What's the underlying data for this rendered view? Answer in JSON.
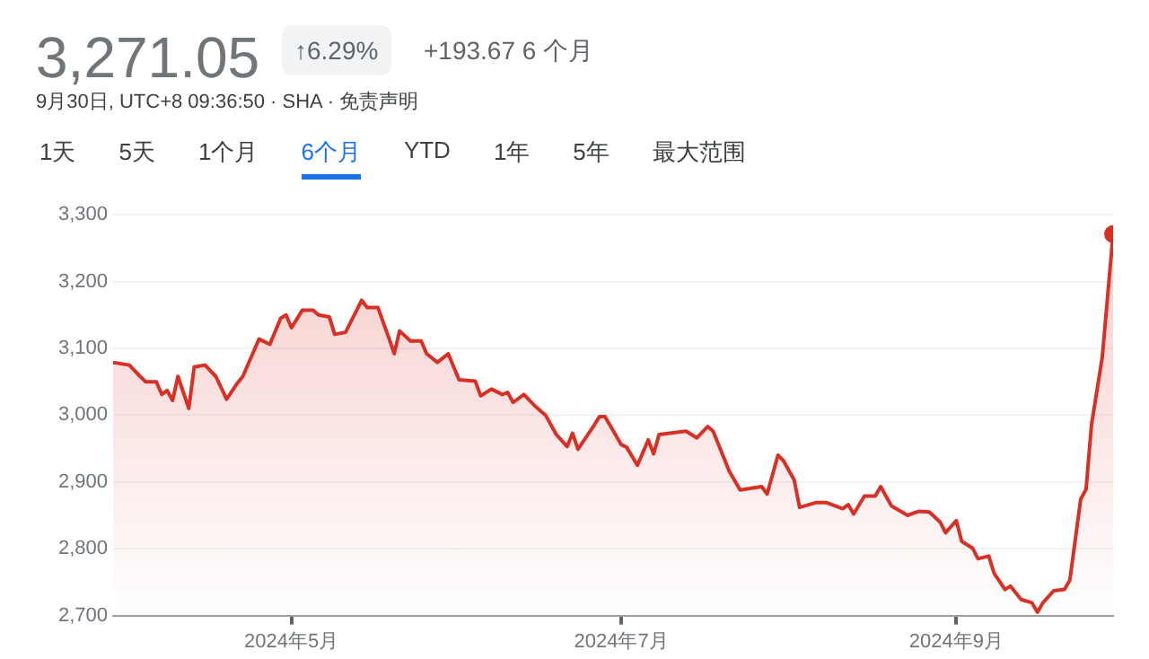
{
  "chart_data": {
    "type": "area",
    "title": "3,271.05",
    "subtitle": "9月30日, UTC+8 09:36:50 · SHA · 免责声明",
    "annotations": [
      "↑6.29%",
      "+193.67 6 个月",
      "1天",
      "5天",
      "1个月",
      "6个月",
      "YTD",
      "1年",
      "5年",
      "最大范围"
    ],
    "x": [
      "2024-03-29",
      "2024-04-01",
      "2024-04-03",
      "2024-04-04",
      "2024-04-06",
      "2024-04-07",
      "2024-04-08",
      "2024-04-09",
      "2024-04-10",
      "2024-04-12",
      "2024-04-13",
      "2024-04-15",
      "2024-04-17",
      "2024-04-19",
      "2024-04-21",
      "2024-04-22",
      "2024-04-25",
      "2024-04-27",
      "2024-04-29",
      "2024-04-30",
      "2024-05-01",
      "2024-05-03",
      "2024-05-05",
      "2024-05-06",
      "2024-05-08",
      "2024-05-09",
      "2024-05-11",
      "2024-05-14",
      "2024-05-15",
      "2024-05-17",
      "2024-05-19",
      "2024-05-20",
      "2024-05-21",
      "2024-05-23",
      "2024-05-25",
      "2024-05-26",
      "2024-05-28",
      "2024-05-30",
      "2024-06-01",
      "2024-06-04",
      "2024-06-05",
      "2024-06-07",
      "2024-06-09",
      "2024-06-10",
      "2024-06-11",
      "2024-06-13",
      "2024-06-15",
      "2024-06-17",
      "2024-06-19",
      "2024-06-21",
      "2024-06-22",
      "2024-06-23",
      "2024-06-26",
      "2024-06-27",
      "2024-06-28",
      "2024-07-01",
      "2024-07-02",
      "2024-07-04",
      "2024-07-06",
      "2024-07-07",
      "2024-07-08",
      "2024-07-13",
      "2024-07-15",
      "2024-07-17",
      "2024-07-18",
      "2024-07-21",
      "2024-07-23",
      "2024-07-27",
      "2024-07-28",
      "2024-07-30",
      "2024-07-31",
      "2024-08-02",
      "2024-08-03",
      "2024-08-06",
      "2024-08-08",
      "2024-08-11",
      "2024-08-12",
      "2024-08-13",
      "2024-08-15",
      "2024-08-17",
      "2024-08-18",
      "2024-08-20",
      "2024-08-23",
      "2024-08-25",
      "2024-08-27",
      "2024-08-29",
      "2024-08-30",
      "2024-09-01",
      "2024-09-02",
      "2024-09-04",
      "2024-09-05",
      "2024-09-07",
      "2024-09-08",
      "2024-09-10",
      "2024-09-11",
      "2024-09-13",
      "2024-09-15",
      "2024-09-16",
      "2024-09-17",
      "2024-09-19",
      "2024-09-21",
      "2024-09-22",
      "2024-09-24",
      "2024-09-25",
      "2024-09-26",
      "2024-09-28",
      "2024-09-30"
    ],
    "series": [
      {
        "color": "#d93025",
        "values": [
          3079,
          3075,
          3058,
          3050,
          3050,
          3031,
          3037,
          3022,
          3058,
          3010,
          3072,
          3075,
          3058,
          3024,
          3048,
          3058,
          3114,
          3106,
          3145,
          3150,
          3131,
          3157,
          3157,
          3150,
          3147,
          3121,
          3124,
          3172,
          3161,
          3161,
          3116,
          3092,
          3126,
          3111,
          3111,
          3092,
          3079,
          3092,
          3053,
          3051,
          3029,
          3039,
          3031,
          3034,
          3019,
          3031,
          3014,
          3000,
          2971,
          2953,
          2973,
          2949,
          2985,
          2998,
          2998,
          2956,
          2952,
          2925,
          2963,
          2942,
          2971,
          2976,
          2966,
          2983,
          2976,
          2916,
          2888,
          2893,
          2882,
          2940,
          2932,
          2903,
          2862,
          2869,
          2869,
          2860,
          2866,
          2852,
          2879,
          2879,
          2893,
          2864,
          2850,
          2856,
          2855,
          2840,
          2824,
          2842,
          2811,
          2801,
          2785,
          2789,
          2763,
          2739,
          2744,
          2724,
          2719,
          2705,
          2719,
          2737,
          2739,
          2753,
          2874,
          2889,
          2985,
          3087,
          3271
        ]
      }
    ],
    "xlim": [
      "2024-03-29",
      "2024-09-30"
    ],
    "xticks": [
      {
        "value": "2024-05-01",
        "label": "2024年5月"
      },
      {
        "value": "2024-07-01",
        "label": "2024年7月"
      },
      {
        "value": "2024-09-01",
        "label": "2024年9月"
      }
    ],
    "ylim": [
      2700,
      3300
    ],
    "yticks": [
      {
        "value": 2700,
        "label": "2,700"
      },
      {
        "value": 2800,
        "label": "2,800"
      },
      {
        "value": 2900,
        "label": "2,900"
      },
      {
        "value": 3000,
        "label": "3,000"
      },
      {
        "value": 3100,
        "label": "3,100"
      },
      {
        "value": 3200,
        "label": "3,200"
      },
      {
        "value": 3300,
        "label": "3,300"
      }
    ],
    "grid": "y"
  }
}
